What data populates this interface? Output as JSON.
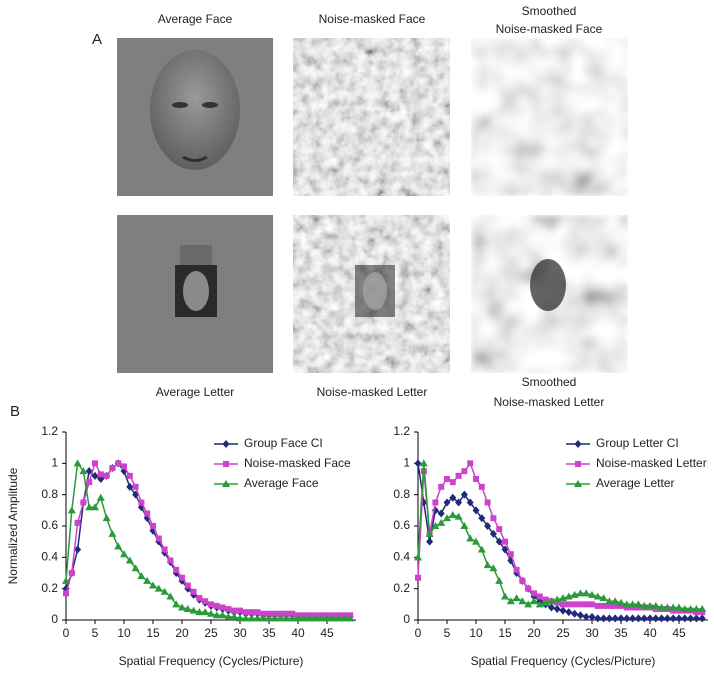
{
  "panel_a": {
    "label": "A",
    "top_titles": [
      [
        "Average Face"
      ],
      [
        "Noise-masked Face"
      ],
      [
        "Smoothed",
        "Noise-masked  Face"
      ]
    ],
    "bottom_titles": [
      [
        "Average Letter"
      ],
      [
        "Noise-masked Letter"
      ],
      [
        "Smoothed",
        "Noise-masked  Letter"
      ]
    ]
  },
  "panel_b_label": "B",
  "chart_data": [
    {
      "type": "line",
      "ylabel": "Normalized Amplitude",
      "xlabel": "Spatial Frequency (Cycles/Picture)",
      "xlim": [
        0,
        50
      ],
      "ylim": [
        0,
        1.2
      ],
      "xticks": [
        0,
        5,
        10,
        15,
        20,
        25,
        30,
        35,
        40,
        45
      ],
      "yticks": [
        0,
        0.2,
        0.4,
        0.6,
        0.8,
        1,
        1.2
      ],
      "legend": "upper right",
      "x": [
        0,
        1,
        2,
        3,
        4,
        5,
        6,
        7,
        8,
        9,
        10,
        11,
        12,
        13,
        14,
        15,
        16,
        17,
        18,
        19,
        20,
        21,
        22,
        23,
        24,
        25,
        26,
        27,
        28,
        29,
        30,
        31,
        32,
        33,
        34,
        35,
        36,
        37,
        38,
        39,
        40,
        41,
        42,
        43,
        44,
        45,
        46,
        47,
        48,
        49
      ],
      "series": [
        {
          "name": "Group Face CI",
          "color": "#1f2a7a",
          "marker": "diamond",
          "values": [
            0.2,
            0.3,
            0.45,
            0.75,
            0.95,
            0.92,
            0.9,
            0.92,
            0.97,
            1.0,
            0.95,
            0.85,
            0.8,
            0.72,
            0.65,
            0.57,
            0.5,
            0.43,
            0.37,
            0.3,
            0.25,
            0.2,
            0.16,
            0.13,
            0.11,
            0.09,
            0.08,
            0.07,
            0.06,
            0.05,
            0.05,
            0.04,
            0.04,
            0.04,
            0.03,
            0.03,
            0.03,
            0.03,
            0.03,
            0.03,
            0.02,
            0.02,
            0.02,
            0.02,
            0.02,
            0.02,
            0.02,
            0.02,
            0.02,
            0.02
          ]
        },
        {
          "name": "Noise-masked Face",
          "color": "#cc44cc",
          "marker": "square",
          "values": [
            0.17,
            0.3,
            0.62,
            0.75,
            0.88,
            1.0,
            0.93,
            0.92,
            0.97,
            1.0,
            0.98,
            0.92,
            0.85,
            0.75,
            0.68,
            0.6,
            0.52,
            0.45,
            0.38,
            0.32,
            0.27,
            0.22,
            0.18,
            0.14,
            0.12,
            0.1,
            0.09,
            0.08,
            0.07,
            0.06,
            0.06,
            0.05,
            0.05,
            0.05,
            0.04,
            0.04,
            0.04,
            0.04,
            0.04,
            0.04,
            0.03,
            0.03,
            0.03,
            0.03,
            0.03,
            0.03,
            0.03,
            0.03,
            0.03,
            0.03
          ]
        },
        {
          "name": "Average Face",
          "color": "#2a9a3a",
          "marker": "triangle",
          "values": [
            0.25,
            0.7,
            1.0,
            0.95,
            0.72,
            0.72,
            0.78,
            0.65,
            0.55,
            0.47,
            0.42,
            0.38,
            0.33,
            0.28,
            0.25,
            0.22,
            0.2,
            0.18,
            0.15,
            0.1,
            0.08,
            0.07,
            0.06,
            0.05,
            0.05,
            0.04,
            0.03,
            0.03,
            0.02,
            0.02,
            0.01,
            0.01,
            0.01,
            0.01,
            0.01,
            0.01,
            0.01,
            0.01,
            0.01,
            0.01,
            0.01,
            0.01,
            0.01,
            0.01,
            0.01,
            0.01,
            0.01,
            0.01,
            0.01,
            0.01
          ]
        }
      ]
    },
    {
      "type": "line",
      "xlabel": "Spatial Frequency (Cycles/Picture)",
      "xlim": [
        0,
        50
      ],
      "ylim": [
        0,
        1.2
      ],
      "xticks": [
        0,
        5,
        10,
        15,
        20,
        25,
        30,
        35,
        40,
        45
      ],
      "yticks": [
        0,
        0.2,
        0.4,
        0.6,
        0.8,
        1,
        1.2
      ],
      "legend": "upper right",
      "x": [
        0,
        1,
        2,
        3,
        4,
        5,
        6,
        7,
        8,
        9,
        10,
        11,
        12,
        13,
        14,
        15,
        16,
        17,
        18,
        19,
        20,
        21,
        22,
        23,
        24,
        25,
        26,
        27,
        28,
        29,
        30,
        31,
        32,
        33,
        34,
        35,
        36,
        37,
        38,
        39,
        40,
        41,
        42,
        43,
        44,
        45,
        46,
        47,
        48,
        49
      ],
      "series": [
        {
          "name": "Group Letter CI",
          "color": "#1f2a7a",
          "marker": "diamond",
          "values": [
            1.0,
            0.75,
            0.5,
            0.7,
            0.68,
            0.75,
            0.78,
            0.75,
            0.8,
            0.75,
            0.7,
            0.65,
            0.6,
            0.55,
            0.5,
            0.45,
            0.38,
            0.3,
            0.25,
            0.2,
            0.15,
            0.12,
            0.1,
            0.08,
            0.07,
            0.06,
            0.05,
            0.04,
            0.03,
            0.02,
            0.02,
            0.01,
            0.01,
            0.01,
            0.01,
            0.01,
            0.01,
            0.01,
            0.01,
            0.01,
            0.01,
            0.01,
            0.01,
            0.01,
            0.01,
            0.01,
            0.01,
            0.01,
            0.01,
            0.01
          ]
        },
        {
          "name": "Noise-masked Letter",
          "color": "#cc44cc",
          "marker": "square",
          "values": [
            0.27,
            0.95,
            0.55,
            0.75,
            0.85,
            0.9,
            0.88,
            0.92,
            0.95,
            1.0,
            0.9,
            0.85,
            0.75,
            0.65,
            0.58,
            0.5,
            0.42,
            0.32,
            0.25,
            0.2,
            0.17,
            0.15,
            0.13,
            0.12,
            0.11,
            0.1,
            0.1,
            0.1,
            0.1,
            0.1,
            0.1,
            0.09,
            0.09,
            0.09,
            0.09,
            0.09,
            0.08,
            0.08,
            0.08,
            0.08,
            0.08,
            0.07,
            0.07,
            0.07,
            0.06,
            0.06,
            0.06,
            0.06,
            0.05,
            0.05
          ]
        },
        {
          "name": "Average Letter",
          "color": "#2a9a3a",
          "marker": "triangle",
          "values": [
            0.4,
            1.0,
            0.55,
            0.6,
            0.62,
            0.65,
            0.67,
            0.66,
            0.6,
            0.52,
            0.5,
            0.45,
            0.35,
            0.33,
            0.25,
            0.15,
            0.12,
            0.14,
            0.12,
            0.1,
            0.12,
            0.1,
            0.11,
            0.12,
            0.13,
            0.14,
            0.15,
            0.16,
            0.17,
            0.17,
            0.16,
            0.15,
            0.14,
            0.12,
            0.12,
            0.11,
            0.1,
            0.1,
            0.1,
            0.09,
            0.09,
            0.09,
            0.08,
            0.08,
            0.08,
            0.08,
            0.07,
            0.07,
            0.07,
            0.07
          ]
        }
      ]
    }
  ]
}
